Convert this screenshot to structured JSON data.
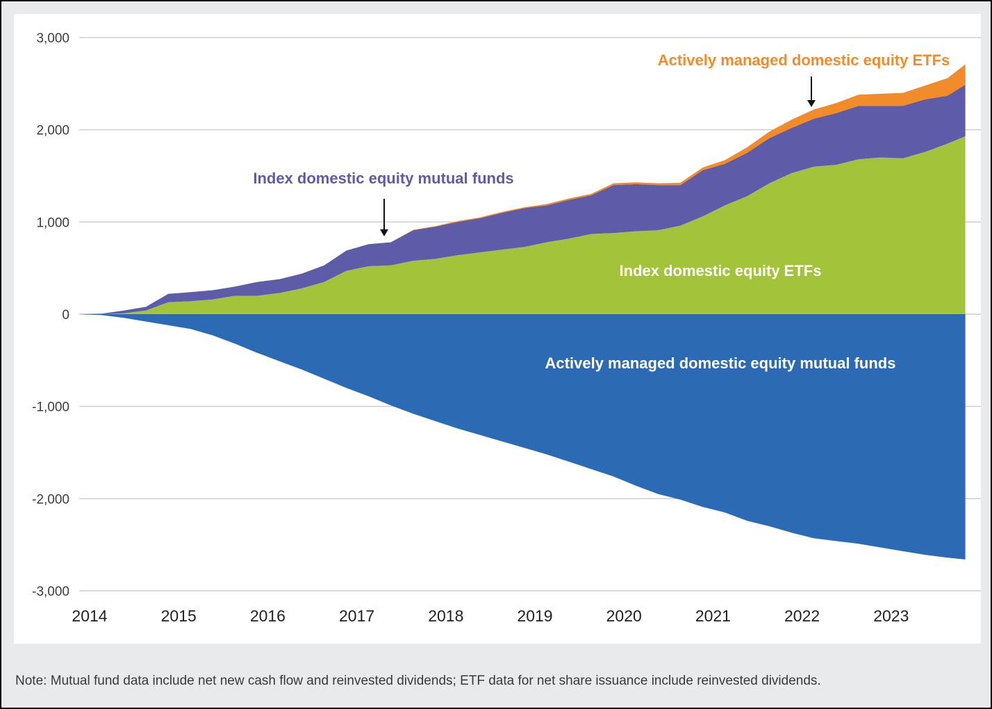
{
  "chart_data": {
    "type": "area",
    "title": "",
    "xlabel": "",
    "ylabel": "",
    "ylim": [
      -3000,
      3000
    ],
    "yticks": [
      3000,
      2000,
      1000,
      0,
      -1000,
      -2000,
      -3000
    ],
    "ytick_labels": [
      "3,000",
      "2,000",
      "1,000",
      "0",
      "-1,000",
      "-2,000",
      "-3,000"
    ],
    "x_start": 2014.0,
    "x_end": 2024.0,
    "xtick_labels": [
      "2014",
      "2015",
      "2016",
      "2017",
      "2018",
      "2019",
      "2020",
      "2021",
      "2022",
      "2023"
    ],
    "x": [
      2014.0,
      2014.25,
      2014.5,
      2014.75,
      2015.0,
      2015.25,
      2015.5,
      2015.75,
      2016.0,
      2016.25,
      2016.5,
      2016.75,
      2017.0,
      2017.25,
      2017.5,
      2017.75,
      2018.0,
      2018.25,
      2018.5,
      2018.75,
      2019.0,
      2019.25,
      2019.5,
      2019.75,
      2020.0,
      2020.25,
      2020.5,
      2020.75,
      2021.0,
      2021.25,
      2021.5,
      2021.75,
      2022.0,
      2022.25,
      2022.5,
      2022.75,
      2023.0,
      2023.25,
      2023.5,
      2023.75,
      2023.95
    ],
    "series": [
      {
        "name": "Index domestic equity ETFs",
        "color": "#a3c43a",
        "stack": "positive",
        "values": [
          0,
          0,
          10,
          40,
          130,
          140,
          160,
          200,
          200,
          230,
          280,
          350,
          470,
          520,
          530,
          580,
          600,
          640,
          670,
          700,
          730,
          780,
          820,
          870,
          880,
          900,
          910,
          960,
          1060,
          1180,
          1280,
          1420,
          1530,
          1600,
          1620,
          1680,
          1700,
          1690,
          1760,
          1850,
          1930
        ]
      },
      {
        "name": "Index domestic equity mutual funds",
        "color": "#5e5ca8",
        "stack": "positive",
        "values": [
          0,
          5,
          30,
          40,
          90,
          100,
          100,
          100,
          150,
          150,
          160,
          180,
          220,
          240,
          250,
          330,
          350,
          360,
          370,
          400,
          420,
          400,
          420,
          420,
          520,
          510,
          490,
          440,
          500,
          450,
          470,
          490,
          490,
          520,
          560,
          580,
          560,
          570,
          570,
          520,
          560
        ]
      },
      {
        "name": "Actively managed domestic equity ETFs",
        "color": "#f28c2a",
        "stack": "positive",
        "values": [
          0,
          0,
          0,
          0,
          0,
          0,
          0,
          0,
          0,
          0,
          0,
          0,
          0,
          0,
          0,
          5,
          5,
          10,
          10,
          10,
          10,
          15,
          15,
          15,
          20,
          20,
          20,
          25,
          30,
          40,
          60,
          70,
          90,
          100,
          110,
          120,
          130,
          140,
          150,
          190,
          220
        ]
      },
      {
        "name": "Actively managed domestic equity mutual funds",
        "color": "#2c6ab3",
        "stack": "negative",
        "values": [
          0,
          -10,
          -40,
          -80,
          -120,
          -160,
          -230,
          -320,
          -420,
          -510,
          -600,
          -700,
          -800,
          -890,
          -990,
          -1080,
          -1160,
          -1240,
          -1310,
          -1380,
          -1450,
          -1520,
          -1600,
          -1680,
          -1760,
          -1860,
          -1950,
          -2010,
          -2090,
          -2150,
          -2240,
          -2300,
          -2370,
          -2430,
          -2460,
          -2490,
          -2530,
          -2570,
          -2610,
          -2640,
          -2660
        ]
      }
    ],
    "annotations": [
      {
        "text": "Index domestic equity mutual funds",
        "color": "#5e5ca8",
        "arrow": true
      },
      {
        "text": "Actively managed domestic equity ETFs",
        "color": "#f28c2a",
        "arrow": true
      },
      {
        "text": "Index domestic equity ETFs",
        "color": "#ffffff",
        "arrow": false
      },
      {
        "text": "Actively managed domestic equity mutual funds",
        "color": "#ffffff",
        "arrow": false
      }
    ],
    "grid": true,
    "legend": "none"
  },
  "note": "Note: Mutual fund data include net new cash flow and reinvested dividends; ETF data for net share issuance include reinvested dividends."
}
